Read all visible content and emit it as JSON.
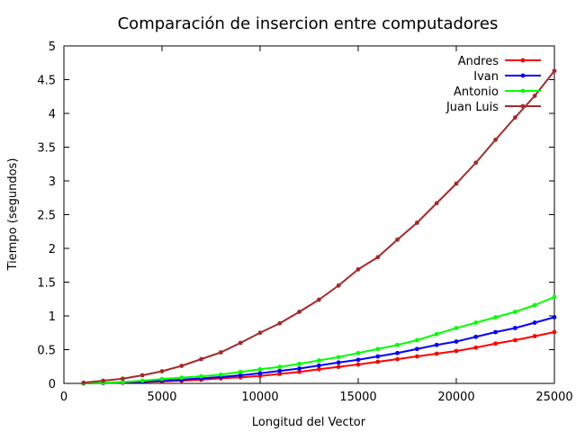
{
  "chart_data": {
    "type": "line",
    "title": "Comparación de insercion entre computadores",
    "xlabel": "Longitud del Vector",
    "ylabel": "Tiempo (segundos)",
    "xlim": [
      0,
      25000
    ],
    "ylim": [
      0,
      5
    ],
    "xticks": [
      "0",
      "5000",
      "10000",
      "15000",
      "20000",
      "25000"
    ],
    "yticks": [
      "0",
      "0.5",
      "1",
      "1.5",
      "2",
      "2.5",
      "3",
      "3.5",
      "4",
      "4.5",
      "5"
    ],
    "grid": false,
    "legend_position": "top-right",
    "x": [
      1000,
      2000,
      3000,
      4000,
      5000,
      6000,
      7000,
      8000,
      9000,
      10000,
      11000,
      12000,
      13000,
      14000,
      15000,
      16000,
      17000,
      18000,
      19000,
      20000,
      21000,
      22000,
      23000,
      24000,
      25000
    ],
    "series": [
      {
        "name": "Andres",
        "color": "#ff0000",
        "values": [
          0.0,
          0.005,
          0.01,
          0.02,
          0.03,
          0.04,
          0.055,
          0.075,
          0.09,
          0.11,
          0.14,
          0.17,
          0.21,
          0.245,
          0.28,
          0.32,
          0.36,
          0.4,
          0.44,
          0.48,
          0.53,
          0.59,
          0.64,
          0.7,
          0.76
        ]
      },
      {
        "name": "Ivan",
        "color": "#0000ff",
        "values": [
          0.0,
          0.006,
          0.015,
          0.025,
          0.04,
          0.055,
          0.075,
          0.095,
          0.12,
          0.15,
          0.185,
          0.22,
          0.265,
          0.31,
          0.35,
          0.4,
          0.45,
          0.51,
          0.57,
          0.62,
          0.69,
          0.76,
          0.82,
          0.9,
          0.98
        ]
      },
      {
        "name": "Antonio",
        "color": "#00ff00",
        "values": [
          0.0,
          0.01,
          0.02,
          0.04,
          0.065,
          0.085,
          0.105,
          0.13,
          0.17,
          0.21,
          0.245,
          0.29,
          0.34,
          0.39,
          0.45,
          0.51,
          0.57,
          0.64,
          0.73,
          0.82,
          0.9,
          0.98,
          1.06,
          1.16,
          1.28
        ]
      },
      {
        "name": "Juan Luis",
        "color": "#a52a2a",
        "values": [
          0.01,
          0.04,
          0.07,
          0.12,
          0.18,
          0.26,
          0.36,
          0.46,
          0.6,
          0.75,
          0.89,
          1.06,
          1.24,
          1.45,
          1.69,
          1.87,
          2.13,
          2.38,
          2.67,
          2.96,
          3.27,
          3.61,
          3.94,
          4.26,
          4.63
        ]
      }
    ]
  }
}
